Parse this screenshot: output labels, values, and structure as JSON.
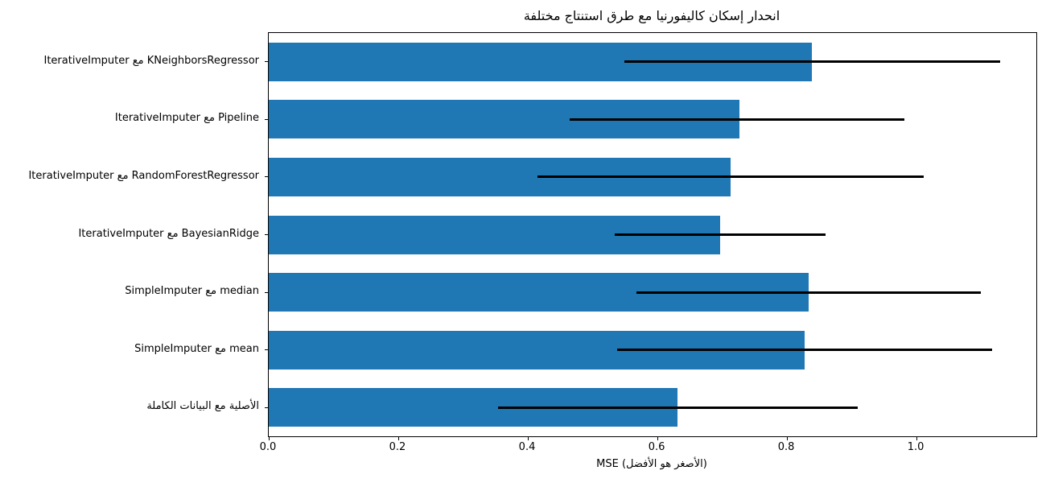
{
  "chart_data": {
    "type": "bar",
    "orientation": "horizontal",
    "title": "انحدار إسكان كاليفورنيا مع طرق استنتاج مختلفة",
    "xlabel": "MSE (الأصغر هو الأفضل)",
    "xlim": [
      0,
      1.185
    ],
    "xtick_labels": [
      "0.0",
      "0.2",
      "0.4",
      "0.6",
      "0.8",
      "1.0"
    ],
    "grid": false,
    "legend": null,
    "bar_color": "#1f77b4",
    "error_color": "#000000",
    "categories": [
      "IterativeImputer مع KNeighborsRegressor",
      "IterativeImputer مع Pipeline",
      "IterativeImputer مع RandomForestRegressor",
      "IterativeImputer مع BayesianRidge",
      "SimpleImputer مع median",
      "SimpleImputer مع mean",
      "الأصلية مع البيانات الكاملة"
    ],
    "values": [
      0.839,
      0.727,
      0.713,
      0.697,
      0.833,
      0.827,
      0.631
    ],
    "error_low": [
      0.549,
      0.465,
      0.415,
      0.534,
      0.568,
      0.538,
      0.354
    ],
    "error_high": [
      1.129,
      0.981,
      1.011,
      0.86,
      1.099,
      1.117,
      0.909
    ]
  }
}
